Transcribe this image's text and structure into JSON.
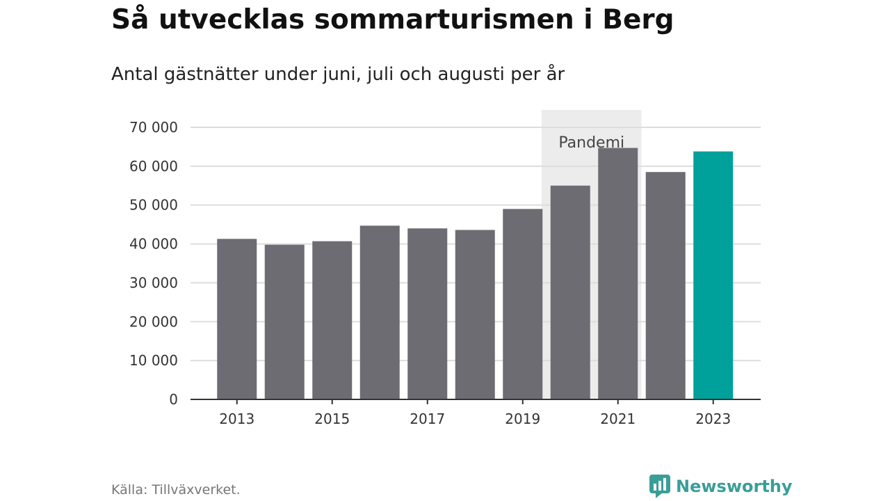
{
  "title": "Så utvecklas sommarturismen i Berg",
  "subtitle": "Antal gästnätter under juni, juli och augusti per år",
  "source": "Källa: Tillväxverket.",
  "brand": {
    "name": "Newsworthy",
    "icon": "newsworthy-logo-icon",
    "color": "#3a9e98"
  },
  "colors": {
    "bar": "#6d6c73",
    "highlight": "#00a19a",
    "gridline": "#dddddd",
    "axis": "#333333",
    "band": "#ececec"
  },
  "chart_data": {
    "type": "bar",
    "categories": [
      "2013",
      "2014",
      "2015",
      "2016",
      "2017",
      "2018",
      "2019",
      "2020",
      "2021",
      "2022",
      "2023"
    ],
    "values": [
      41300,
      39800,
      40700,
      44700,
      44000,
      43600,
      49000,
      55000,
      64700,
      58500,
      63800
    ],
    "highlight_category": "2023",
    "x_tick_labels": [
      "2013",
      "2015",
      "2017",
      "2019",
      "2021",
      "2023"
    ],
    "y_ticks": [
      0,
      10000,
      20000,
      30000,
      40000,
      50000,
      60000,
      70000
    ],
    "y_tick_labels": [
      "0",
      "10 000",
      "20 000",
      "30 000",
      "40 000",
      "50 000",
      "60 000",
      "70 000"
    ],
    "ylim": [
      0,
      70000
    ],
    "grid": true,
    "annotation": {
      "label": "Pandemi",
      "from": "2020",
      "to": "2021"
    }
  }
}
